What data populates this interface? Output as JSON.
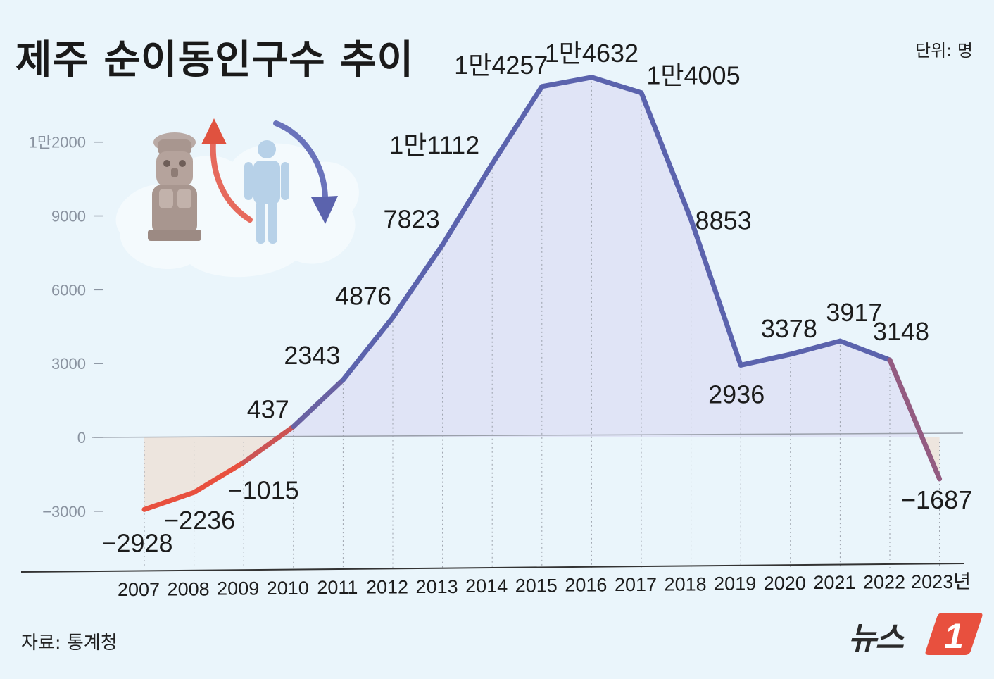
{
  "title": "제주 순이동인구수 추이",
  "unit": "단위: 명",
  "source": "자료: 통계청",
  "logo": {
    "text": "뉴스",
    "mark": "1"
  },
  "colors": {
    "positive_line": "#5b63ad",
    "negative_line": "#e8503e",
    "positive_fill": "#dfe3f6",
    "negative_fill": "#ede4dc",
    "background": "#eaf5fb"
  },
  "chart_data": {
    "type": "area",
    "x": [
      "2007",
      "2008",
      "2009",
      "2010",
      "2011",
      "2012",
      "2013",
      "2014",
      "2015",
      "2016",
      "2017",
      "2018",
      "2019",
      "2020",
      "2021",
      "2022",
      "2023년"
    ],
    "values": [
      -2928,
      -2236,
      -1015,
      437,
      2343,
      4876,
      7823,
      11112,
      14257,
      14632,
      14005,
      8853,
      2936,
      3378,
      3917,
      3148,
      -1687
    ],
    "data_labels": [
      "−2928",
      "−2236",
      "−1015",
      "437",
      "2343",
      "4876",
      "7823",
      "1만1112",
      "1만4257",
      "1만4632",
      "1만4005",
      "8853",
      "2936",
      "3378",
      "3917",
      "3148",
      "−1687"
    ],
    "y_ticks": [
      -3000,
      0,
      3000,
      6000,
      9000,
      12000
    ],
    "y_tick_labels": [
      "−3000",
      "0",
      "3000",
      "6000",
      "9000",
      "1만2000"
    ],
    "ylim": [
      -5400,
      14800
    ],
    "legend": "none",
    "grid": "vertical dotted"
  },
  "illustration": {
    "icons": [
      "dol-hareubang-icon",
      "person-icon",
      "up-arrow-icon",
      "down-arrow-icon"
    ]
  }
}
